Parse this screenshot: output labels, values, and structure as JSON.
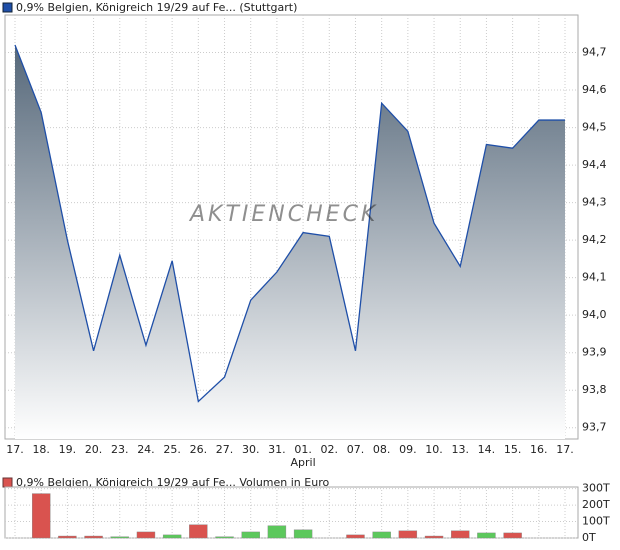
{
  "chart_data": [
    {
      "type": "area",
      "title": "0,9% Belgien, Königreich 19/29 auf Fe... (Stuttgart)",
      "watermark": "AKTIENCHECK",
      "categories": [
        "17.",
        "18.",
        "19.",
        "20.",
        "23.",
        "24.",
        "25.",
        "26.",
        "27.",
        "30.",
        "31.",
        "01.",
        "02.",
        "07.",
        "08.",
        "09.",
        "10.",
        "13.",
        "14.",
        "15.",
        "16.",
        "17."
      ],
      "month_label": "April",
      "series": [
        {
          "name": "0,9% Belgien, Königreich 19/29 auf Fe... (Stuttgart)",
          "color": "#1f4fa8",
          "values": [
            94.72,
            94.54,
            94.2,
            93.905,
            94.16,
            93.92,
            94.145,
            93.77,
            93.835,
            94.04,
            94.115,
            94.22,
            94.21,
            93.905,
            94.565,
            94.49,
            94.245,
            94.13,
            94.455,
            94.445,
            94.52,
            94.52
          ]
        }
      ],
      "ylim": [
        93.67,
        94.8
      ],
      "yticks": [
        {
          "value": 93.7,
          "label": "93,7"
        },
        {
          "value": 93.8,
          "label": "93,8"
        },
        {
          "value": 93.9,
          "label": "93,9"
        },
        {
          "value": 94.0,
          "label": "94,0"
        },
        {
          "value": 94.1,
          "label": "94,1"
        },
        {
          "value": 94.2,
          "label": "94,2"
        },
        {
          "value": 94.3,
          "label": "94,3"
        },
        {
          "value": 94.4,
          "label": "94,4"
        },
        {
          "value": 94.5,
          "label": "94,5"
        },
        {
          "value": 94.6,
          "label": "94,6"
        },
        {
          "value": 94.7,
          "label": "94,7"
        }
      ],
      "grid": true
    },
    {
      "type": "bar",
      "title": "0,9% Belgien, Königreich 19/29 auf Fe... Volumen in Euro",
      "values": [
        null,
        270,
        12,
        12,
        8,
        37,
        19,
        81,
        8,
        37,
        75,
        50,
        null,
        19,
        37,
        44,
        12,
        44,
        31,
        31,
        null,
        null
      ],
      "colors": [
        "#d9534f",
        "#d9534f",
        "#d9534f",
        "#d9534f",
        "#5cc85c",
        "#d9534f",
        "#5cc85c",
        "#d9534f",
        "#5cc85c",
        "#5cc85c",
        "#5cc85c",
        "#5cc85c",
        "#d9534f",
        "#d9534f",
        "#5cc85c",
        "#d9534f",
        "#d9534f",
        "#d9534f",
        "#5cc85c",
        "#d9534f",
        "#d9534f",
        "#d9534f"
      ],
      "ylim": [
        0,
        310
      ],
      "yticks": [
        {
          "value": 0,
          "label": "0T"
        },
        {
          "value": 100,
          "label": "100T"
        },
        {
          "value": 200,
          "label": "200T"
        },
        {
          "value": 300,
          "label": "300T"
        }
      ],
      "grid": true
    }
  ]
}
